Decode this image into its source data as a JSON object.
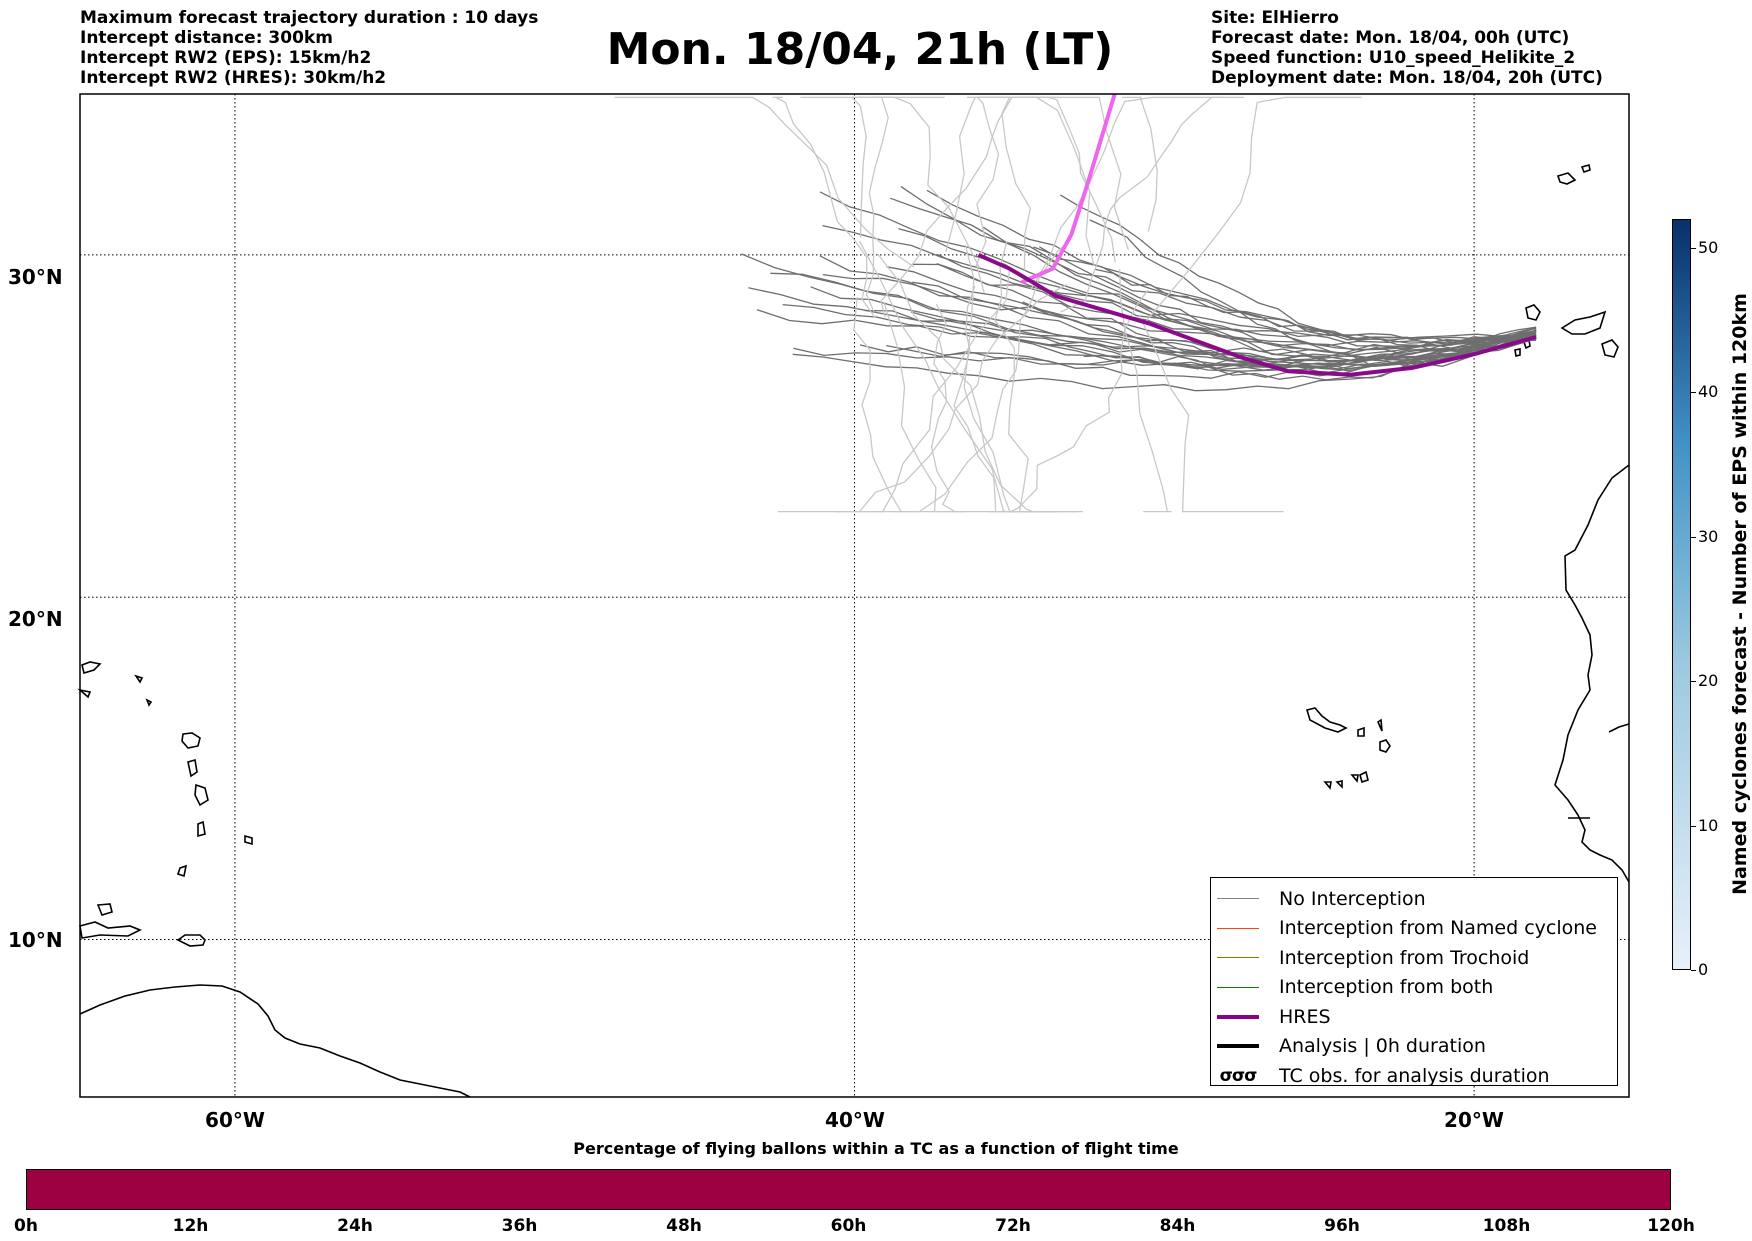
{
  "header_left": [
    "Maximum forecast trajectory duration : 10 days",
    "Intercept distance: 300km",
    "Intercept RW2 (EPS):  15km/h2",
    "Intercept RW2 (HRES): 30km/h2"
  ],
  "header_right": [
    "Site: ElHierro",
    "Forecast date: Mon. 18/04, 00h (UTC)",
    "Speed function: U10_speed_Helikite_2",
    "Deployment date: Mon. 18/04, 20h (UTC)"
  ],
  "title": "Mon. 18/04, 21h (LT)",
  "map": {
    "lat_labels": [
      "30°N",
      "20°N",
      "10°N"
    ],
    "lon_labels": [
      "60°W",
      "40°W",
      "20°W"
    ],
    "lat_values": [
      30,
      20,
      10
    ],
    "lon_values": [
      -60,
      -40,
      -20
    ],
    "extent": {
      "lon_min": -65,
      "lon_max": -15,
      "lat_min": 5.4,
      "lat_max": 34.7
    },
    "launch_site": {
      "name": "ElHierro",
      "lon": -18.0,
      "lat": 27.6
    },
    "hres_track": [
      [
        -18.0,
        27.6
      ],
      [
        -20.0,
        27.1
      ],
      [
        -22.0,
        26.7
      ],
      [
        -24.0,
        26.5
      ],
      [
        -26.0,
        26.6
      ],
      [
        -27.5,
        27.0
      ],
      [
        -29.0,
        27.5
      ],
      [
        -30.5,
        28.0
      ],
      [
        -32.0,
        28.4
      ],
      [
        -33.5,
        28.8
      ],
      [
        -35.0,
        29.6
      ],
      [
        -36.0,
        30.0
      ]
    ],
    "hres_late_track": [
      [
        -34.6,
        29.2
      ],
      [
        -33.6,
        29.6
      ],
      [
        -33.0,
        30.6
      ],
      [
        -32.5,
        32.0
      ],
      [
        -32.0,
        33.5
      ],
      [
        -31.6,
        34.7
      ]
    ],
    "colors": {
      "no_interception": "#6e6e6e",
      "no_interception_late": "#c8c8c8",
      "hres": "#8b0a8b",
      "hres_late": "#ee66ee",
      "named_cyclone": "#ff4500",
      "trochoid": "#808000",
      "both": "#008000"
    }
  },
  "legend": [
    {
      "label": "No Interception",
      "style": "thin",
      "color": "#808080"
    },
    {
      "label": "Interception from Named cyclone",
      "style": "thin",
      "color": "#ff4500"
    },
    {
      "label": "Interception from Trochoid",
      "style": "thin",
      "color": "#808000"
    },
    {
      "label": "Interception from both",
      "style": "thin",
      "color": "#008000"
    },
    {
      "label": "HRES",
      "style": "thick",
      "color": "#8b008b"
    },
    {
      "label": "Analysis | 0h duration",
      "style": "thick",
      "color": "#000000"
    },
    {
      "label": "TC obs. for analysis duration",
      "style": "tc",
      "color": "#000000",
      "symbol": "σσσ"
    }
  ],
  "colorbar": {
    "label": "Named cyclones forecast - Number of EPS within 120km",
    "ticks": [
      "0",
      "10",
      "20",
      "30",
      "40",
      "50"
    ],
    "min": 0,
    "max": 52,
    "color_low": "#e8f0fa",
    "color_high": "#08306b"
  },
  "time_bar": {
    "title": "Percentage of flying ballons within a TC as a function of flight time",
    "ticks": [
      "0h",
      "12h",
      "24h",
      "36h",
      "48h",
      "60h",
      "72h",
      "84h",
      "96h",
      "108h",
      "120h"
    ],
    "color": "#9e0142"
  }
}
